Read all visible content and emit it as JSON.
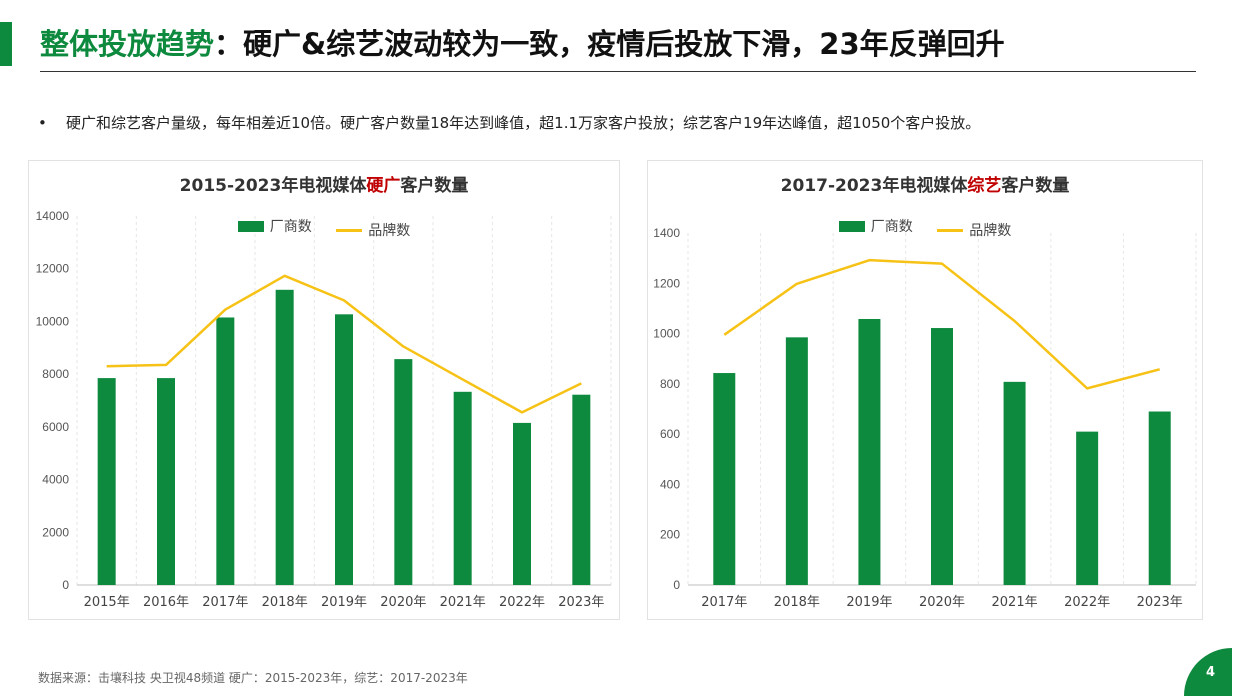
{
  "header": {
    "title_highlight": "整体投放趋势",
    "title_rest": "：硬广&综艺波动较为一致，疫情后投放下滑，23年反弹回升"
  },
  "bullet": {
    "marker": "•",
    "text": "硬广和综艺客户量级，每年相差近10倍。硬广客户数量18年达到峰值，超1.1万家客户投放；综艺客户19年达峰值，超1050个客户投放。"
  },
  "colors": {
    "accent": "#0e8a3e",
    "bar": "#0e8a3e",
    "line": "#f7c216",
    "red": "#c00000"
  },
  "chart_data": [
    {
      "type": "bar",
      "title_pre": "2015-2023年电视媒体",
      "title_red": "硬广",
      "title_post": "客户数量",
      "categories": [
        "2015年",
        "2016年",
        "2017年",
        "2018年",
        "2019年",
        "2020年",
        "2021年",
        "2022年",
        "2023年"
      ],
      "series": [
        {
          "name": "厂商数",
          "kind": "bar",
          "values": [
            7850,
            7850,
            10150,
            11200,
            10270,
            8570,
            7330,
            6150,
            7220
          ]
        },
        {
          "name": "品牌数",
          "kind": "line",
          "values": [
            8300,
            8350,
            10450,
            11730,
            10800,
            9050,
            7800,
            6550,
            7650
          ]
        }
      ],
      "ylim": [
        0,
        14000
      ],
      "yticks": [
        0,
        2000,
        4000,
        6000,
        8000,
        10000,
        12000,
        14000
      ],
      "grid": "vertical",
      "legend": "top-center"
    },
    {
      "type": "bar",
      "title_pre": "2017-2023年电视媒体",
      "title_red": "综艺",
      "title_post": "客户数量",
      "categories": [
        "2017年",
        "2018年",
        "2019年",
        "2020年",
        "2021年",
        "2022年",
        "2023年"
      ],
      "series": [
        {
          "name": "厂商数",
          "kind": "bar",
          "values": [
            843,
            985,
            1058,
            1022,
            808,
            610,
            690
          ]
        },
        {
          "name": "品牌数",
          "kind": "line",
          "values": [
            995,
            1198,
            1292,
            1278,
            1050,
            782,
            858
          ]
        }
      ],
      "ylim": [
        0,
        1400
      ],
      "yticks": [
        0,
        200,
        400,
        600,
        800,
        1000,
        1200,
        1400
      ],
      "grid": "vertical",
      "legend": "top-center"
    }
  ],
  "footer": {
    "source": "数据来源：击壤科技 央卫视48频道 硬广：2015-2023年，综艺：2017-2023年"
  },
  "page": {
    "number": "4"
  }
}
